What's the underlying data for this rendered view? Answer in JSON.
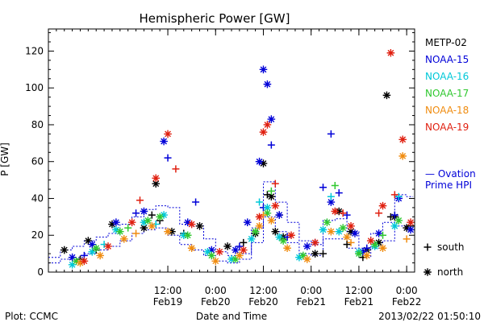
{
  "chart_data": {
    "type": "scatter",
    "title": "Hemispheric Power [GW]",
    "ylabel": "P [GW]",
    "xlabel": "Date and Time",
    "ylim": [
      0,
      132
    ],
    "yticks": [
      0,
      20,
      40,
      60,
      80,
      100,
      120
    ],
    "xlim": [
      "2013-02-18T06:00",
      "2013-02-22T02:00"
    ],
    "xticks": [
      {
        "t": "2013-02-19T12:00",
        "time": "12:00",
        "date": "Feb19"
      },
      {
        "t": "2013-02-20T00:00",
        "time": "0:00",
        "date": "Feb20"
      },
      {
        "t": "2013-02-20T12:00",
        "time": "12:00",
        "date": "Feb20"
      },
      {
        "t": "2013-02-21T00:00",
        "time": "0:00",
        "date": "Feb21"
      },
      {
        "t": "2013-02-21T12:00",
        "time": "12:00",
        "date": "Feb21"
      },
      {
        "t": "2013-02-22T00:00",
        "time": "0:00",
        "date": "Feb22"
      }
    ],
    "legend_placement": "right",
    "series": [
      {
        "name": "METP-02",
        "color": "#000000",
        "points": [
          [
            "2013-02-18T10:00",
            12
          ],
          [
            "2013-02-18T16:00",
            17
          ],
          [
            "2013-02-18T22:00",
            26
          ],
          [
            "2013-02-19T06:00",
            24
          ],
          [
            "2013-02-19T09:00",
            48
          ],
          [
            "2013-02-19T13:00",
            22
          ],
          [
            "2013-02-19T20:00",
            25
          ],
          [
            "2013-02-20T03:00",
            14
          ],
          [
            "2013-02-20T10:00",
            21
          ],
          [
            "2013-02-20T12:00",
            59
          ],
          [
            "2013-02-20T14:00",
            41
          ],
          [
            "2013-02-20T15:00",
            22
          ],
          [
            "2013-02-20T17:00",
            19
          ],
          [
            "2013-02-21T01:00",
            10
          ],
          [
            "2013-02-21T07:00",
            33
          ],
          [
            "2013-02-21T10:00",
            22
          ],
          [
            "2013-02-21T14:00",
            12
          ],
          [
            "2013-02-21T17:00",
            16
          ],
          [
            "2013-02-21T19:00",
            96
          ],
          [
            "2013-02-21T21:00",
            30
          ],
          [
            "2013-02-22T00:00",
            24
          ]
        ],
        "marks": [
          [
            "2013-02-18T14:00",
            7
          ],
          [
            "2013-02-18T18:00",
            12
          ],
          [
            "2013-02-19T08:00",
            31
          ],
          [
            "2013-02-19T10:00",
            28
          ],
          [
            "2013-02-19T16:00",
            21
          ],
          [
            "2013-02-20T07:00",
            16
          ],
          [
            "2013-02-20T13:00",
            42
          ],
          [
            "2013-02-20T16:00",
            31
          ],
          [
            "2013-02-21T03:00",
            10
          ],
          [
            "2013-02-21T09:00",
            15
          ],
          [
            "2013-02-21T13:00",
            8
          ],
          [
            "2013-02-21T20:00",
            30
          ],
          [
            "2013-02-22T01:00",
            25
          ]
        ]
      },
      {
        "name": "NOAA-15",
        "color": "#0000d8",
        "points": [
          [
            "2013-02-18T12:00",
            8
          ],
          [
            "2013-02-18T17:00",
            15
          ],
          [
            "2013-02-18T23:00",
            27
          ],
          [
            "2013-02-19T06:00",
            33
          ],
          [
            "2013-02-19T11:00",
            71
          ],
          [
            "2013-02-19T17:00",
            27
          ],
          [
            "2013-02-19T23:00",
            12
          ],
          [
            "2013-02-20T05:00",
            12
          ],
          [
            "2013-02-20T08:00",
            27
          ],
          [
            "2013-02-20T11:00",
            60
          ],
          [
            "2013-02-20T12:00",
            110
          ],
          [
            "2013-02-20T13:00",
            102
          ],
          [
            "2013-02-20T14:00",
            83
          ],
          [
            "2013-02-20T16:00",
            31
          ],
          [
            "2013-02-20T23:00",
            14
          ],
          [
            "2013-02-21T05:00",
            38
          ],
          [
            "2013-02-21T11:00",
            21
          ],
          [
            "2013-02-21T13:00",
            11
          ],
          [
            "2013-02-21T17:00",
            21
          ],
          [
            "2013-02-21T22:00",
            40
          ],
          [
            "2013-02-22T01:00",
            23
          ]
        ],
        "marks": [
          [
            "2013-02-18T15:00",
            9
          ],
          [
            "2013-02-19T04:00",
            32
          ],
          [
            "2013-02-19T12:00",
            62
          ],
          [
            "2013-02-19T19:00",
            38
          ],
          [
            "2013-02-20T06:00",
            14
          ],
          [
            "2013-02-20T12:00",
            35
          ],
          [
            "2013-02-20T14:00",
            69
          ],
          [
            "2013-02-20T18:00",
            19
          ],
          [
            "2013-02-21T01:00",
            16
          ],
          [
            "2013-02-21T03:00",
            46
          ],
          [
            "2013-02-21T05:00",
            75
          ],
          [
            "2013-02-21T07:00",
            43
          ],
          [
            "2013-02-21T09:00",
            31
          ],
          [
            "2013-02-21T14:00",
            13
          ],
          [
            "2013-02-21T21:00",
            31
          ]
        ]
      },
      {
        "name": "NOAA-16",
        "color": "#00c8d8",
        "points": [
          [
            "2013-02-18T12:00",
            4
          ],
          [
            "2013-02-18T17:00",
            11
          ],
          [
            "2013-02-18T23:00",
            23
          ],
          [
            "2013-02-19T06:00",
            27
          ],
          [
            "2013-02-19T11:00",
            31
          ],
          [
            "2013-02-19T16:00",
            20
          ],
          [
            "2013-02-19T22:00",
            11
          ],
          [
            "2013-02-20T04:00",
            7
          ],
          [
            "2013-02-20T09:00",
            18
          ],
          [
            "2013-02-20T13:00",
            35
          ],
          [
            "2013-02-20T16:00",
            19
          ],
          [
            "2013-02-20T21:00",
            8
          ],
          [
            "2013-02-21T03:00",
            23
          ],
          [
            "2013-02-21T07:00",
            22
          ],
          [
            "2013-02-21T12:00",
            11
          ],
          [
            "2013-02-21T16:00",
            14
          ],
          [
            "2013-02-21T21:00",
            25
          ]
        ],
        "marks": [
          [
            "2013-02-18T20:00",
            15
          ],
          [
            "2013-02-19T09:00",
            26
          ],
          [
            "2013-02-20T11:00",
            38
          ],
          [
            "2013-02-21T05:00",
            41
          ],
          [
            "2013-02-21T22:00",
            41
          ]
        ]
      },
      {
        "name": "NOAA-17",
        "color": "#30c830",
        "points": [
          [
            "2013-02-18T13:00",
            6
          ],
          [
            "2013-02-18T18:00",
            13
          ],
          [
            "2013-02-19T00:00",
            22
          ],
          [
            "2013-02-19T07:00",
            28
          ],
          [
            "2013-02-19T10:00",
            30
          ],
          [
            "2013-02-19T17:00",
            20
          ],
          [
            "2013-02-19T23:00",
            9
          ],
          [
            "2013-02-20T05:00",
            7
          ],
          [
            "2013-02-20T10:00",
            22
          ],
          [
            "2013-02-20T13:00",
            32
          ],
          [
            "2013-02-20T17:00",
            17
          ],
          [
            "2013-02-20T22:00",
            9
          ],
          [
            "2013-02-21T04:00",
            27
          ],
          [
            "2013-02-21T08:00",
            24
          ],
          [
            "2013-02-21T12:00",
            10
          ],
          [
            "2013-02-21T16:00",
            15
          ],
          [
            "2013-02-21T22:00",
            28
          ]
        ],
        "marks": [
          [
            "2013-02-19T02:00",
            24
          ],
          [
            "2013-02-20T14:00",
            44
          ],
          [
            "2013-02-21T06:00",
            47
          ],
          [
            "2013-02-21T18:00",
            20
          ]
        ]
      },
      {
        "name": "NOAA-18",
        "color": "#f08c10",
        "points": [
          [
            "2013-02-18T14:00",
            5
          ],
          [
            "2013-02-18T19:00",
            9
          ],
          [
            "2013-02-19T01:00",
            18
          ],
          [
            "2013-02-19T08:00",
            25
          ],
          [
            "2013-02-19T12:00",
            22
          ],
          [
            "2013-02-19T18:00",
            13
          ],
          [
            "2013-02-20T00:00",
            6
          ],
          [
            "2013-02-20T06:00",
            9
          ],
          [
            "2013-02-20T11:00",
            25
          ],
          [
            "2013-02-20T14:00",
            28
          ],
          [
            "2013-02-20T18:00",
            13
          ],
          [
            "2013-02-20T23:00",
            7
          ],
          [
            "2013-02-21T05:00",
            22
          ],
          [
            "2013-02-21T09:00",
            19
          ],
          [
            "2013-02-21T14:00",
            9
          ],
          [
            "2013-02-21T18:00",
            13
          ],
          [
            "2013-02-21T23:00",
            63
          ]
        ],
        "marks": [
          [
            "2013-02-19T04:00",
            21
          ],
          [
            "2013-02-20T12:00",
            31
          ],
          [
            "2013-02-21T10:00",
            16
          ],
          [
            "2013-02-22T00:00",
            18
          ]
        ]
      },
      {
        "name": "NOAA-19",
        "color": "#e02010",
        "points": [
          [
            "2013-02-18T15:00",
            6
          ],
          [
            "2013-02-18T21:00",
            14
          ],
          [
            "2013-02-19T03:00",
            27
          ],
          [
            "2013-02-19T09:00",
            51
          ],
          [
            "2013-02-19T12:00",
            75
          ],
          [
            "2013-02-19T18:00",
            26
          ],
          [
            "2013-02-20T01:00",
            11
          ],
          [
            "2013-02-20T07:00",
            12
          ],
          [
            "2013-02-20T11:00",
            30
          ],
          [
            "2013-02-20T12:00",
            76
          ],
          [
            "2013-02-20T13:00",
            80
          ],
          [
            "2013-02-20T15:00",
            36
          ],
          [
            "2013-02-20T19:00",
            20
          ],
          [
            "2013-02-21T01:00",
            16
          ],
          [
            "2013-02-21T06:00",
            33
          ],
          [
            "2013-02-21T10:00",
            25
          ],
          [
            "2013-02-21T15:00",
            17
          ],
          [
            "2013-02-21T18:00",
            36
          ],
          [
            "2013-02-21T20:00",
            119
          ],
          [
            "2013-02-21T23:00",
            72
          ],
          [
            "2013-02-22T01:00",
            27
          ]
        ],
        "marks": [
          [
            "2013-02-19T05:00",
            39
          ],
          [
            "2013-02-19T14:00",
            56
          ],
          [
            "2013-02-20T15:00",
            48
          ],
          [
            "2013-02-21T08:00",
            32
          ],
          [
            "2013-02-21T17:00",
            32
          ],
          [
            "2013-02-21T21:00",
            42
          ]
        ]
      }
    ],
    "ovation": {
      "name": "Ovation Prime HPI",
      "legend_lines": [
        "— Ovation",
        "Prime HPI"
      ],
      "color": "#0000d8",
      "style": "dashed",
      "north": [
        [
          "2013-02-18T06:00",
          8
        ],
        [
          "2013-02-18T09:00",
          12
        ],
        [
          "2013-02-18T12:00",
          14
        ],
        [
          "2013-02-18T15:00",
          17
        ],
        [
          "2013-02-18T18:00",
          19
        ],
        [
          "2013-02-18T21:00",
          21
        ],
        [
          "2013-02-19T00:00",
          26
        ],
        [
          "2013-02-19T03:00",
          30
        ],
        [
          "2013-02-19T06:00",
          34
        ],
        [
          "2013-02-19T09:00",
          36
        ],
        [
          "2013-02-19T12:00",
          35
        ],
        [
          "2013-02-19T15:00",
          26
        ],
        [
          "2013-02-19T18:00",
          25
        ],
        [
          "2013-02-19T21:00",
          18
        ],
        [
          "2013-02-20T00:00",
          11
        ],
        [
          "2013-02-20T03:00",
          9
        ],
        [
          "2013-02-20T06:00",
          10
        ],
        [
          "2013-02-20T09:00",
          24
        ],
        [
          "2013-02-20T12:00",
          49
        ],
        [
          "2013-02-20T15:00",
          38
        ],
        [
          "2013-02-20T18:00",
          27
        ],
        [
          "2013-02-20T21:00",
          17
        ],
        [
          "2013-02-21T00:00",
          15
        ],
        [
          "2013-02-21T03:00",
          28
        ],
        [
          "2013-02-21T06:00",
          29
        ],
        [
          "2013-02-21T09:00",
          22
        ],
        [
          "2013-02-21T12:00",
          13
        ],
        [
          "2013-02-21T15:00",
          21
        ],
        [
          "2013-02-21T18:00",
          27
        ],
        [
          "2013-02-21T21:00",
          42
        ],
        [
          "2013-02-22T00:00",
          41
        ]
      ],
      "south": [
        [
          "2013-02-18T06:00",
          5
        ],
        [
          "2013-02-18T09:00",
          7
        ],
        [
          "2013-02-18T12:00",
          8
        ],
        [
          "2013-02-18T15:00",
          10
        ],
        [
          "2013-02-18T18:00",
          12
        ],
        [
          "2013-02-18T21:00",
          14
        ],
        [
          "2013-02-19T00:00",
          17
        ],
        [
          "2013-02-19T03:00",
          21
        ],
        [
          "2013-02-19T06:00",
          23
        ],
        [
          "2013-02-19T09:00",
          24
        ],
        [
          "2013-02-19T12:00",
          20
        ],
        [
          "2013-02-19T15:00",
          15
        ],
        [
          "2013-02-19T18:00",
          12
        ],
        [
          "2013-02-19T21:00",
          9
        ],
        [
          "2013-02-20T00:00",
          6
        ],
        [
          "2013-02-20T03:00",
          5
        ],
        [
          "2013-02-20T06:00",
          7
        ],
        [
          "2013-02-20T09:00",
          16
        ],
        [
          "2013-02-20T12:00",
          30
        ],
        [
          "2013-02-20T15:00",
          22
        ],
        [
          "2013-02-20T18:00",
          16
        ],
        [
          "2013-02-20T21:00",
          10
        ],
        [
          "2013-02-21T00:00",
          9
        ],
        [
          "2013-02-21T03:00",
          18
        ],
        [
          "2013-02-21T06:00",
          18
        ],
        [
          "2013-02-21T09:00",
          13
        ],
        [
          "2013-02-21T12:00",
          8
        ],
        [
          "2013-02-21T15:00",
          13
        ],
        [
          "2013-02-21T18:00",
          17
        ],
        [
          "2013-02-21T21:00",
          25
        ],
        [
          "2013-02-22T00:00",
          24
        ]
      ]
    },
    "symbol_legend": [
      {
        "symbol": "+",
        "label": "south"
      },
      {
        "symbol": "*",
        "label": "north"
      }
    ]
  },
  "footer": {
    "plot_credit": "Plot: CCMC",
    "timestamp": "2013/02/22 01:50:10"
  }
}
